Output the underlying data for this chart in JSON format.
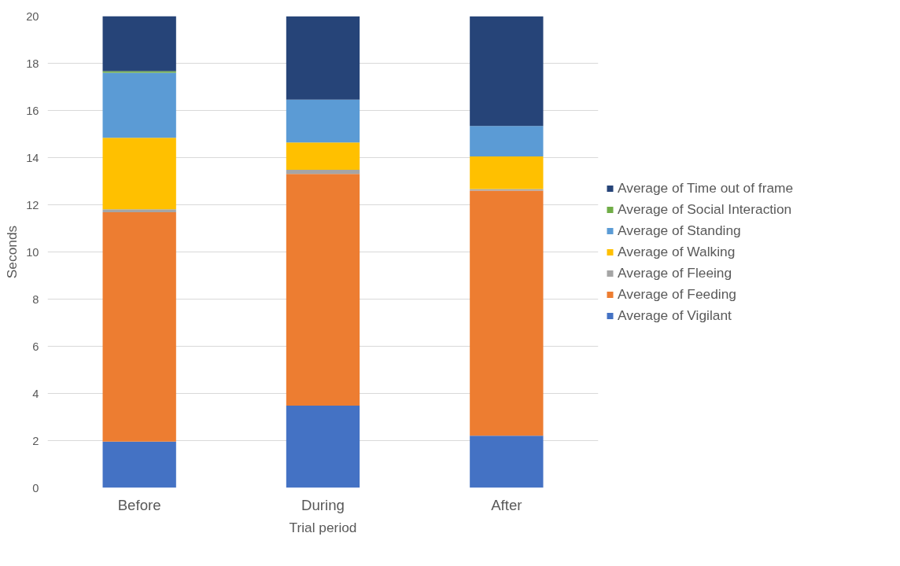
{
  "chart_data": {
    "type": "bar",
    "stacked": true,
    "xlabel": "Trial period",
    "ylabel": "Seconds",
    "categories": [
      "Before",
      "During",
      "After"
    ],
    "ylim": [
      0,
      20
    ],
    "yticks": [
      0,
      2,
      4,
      6,
      8,
      10,
      12,
      14,
      16,
      18,
      20
    ],
    "grid": "y",
    "legend": "right",
    "series": [
      {
        "name": "Average of Vigilant",
        "color": "#4472c4",
        "values": [
          1.96,
          3.48,
          2.21
        ]
      },
      {
        "name": "Average of Feeding",
        "color": "#ed7d31",
        "values": [
          9.72,
          9.83,
          10.39
        ]
      },
      {
        "name": "Average of Fleeing",
        "color": "#a5a5a5",
        "values": [
          0.13,
          0.17,
          0.07
        ]
      },
      {
        "name": "Average of Walking",
        "color": "#ffc000",
        "values": [
          3.03,
          1.16,
          1.38
        ]
      },
      {
        "name": "Average of Standing",
        "color": "#5b9bd5",
        "values": [
          2.76,
          1.82,
          1.29
        ]
      },
      {
        "name": "Average of Social Interaction",
        "color": "#70ad47",
        "values": [
          0.07,
          null,
          null
        ]
      },
      {
        "name": "Average of Time out of frame",
        "color": "#264478",
        "values": [
          2.33,
          3.53,
          4.65
        ]
      }
    ]
  }
}
